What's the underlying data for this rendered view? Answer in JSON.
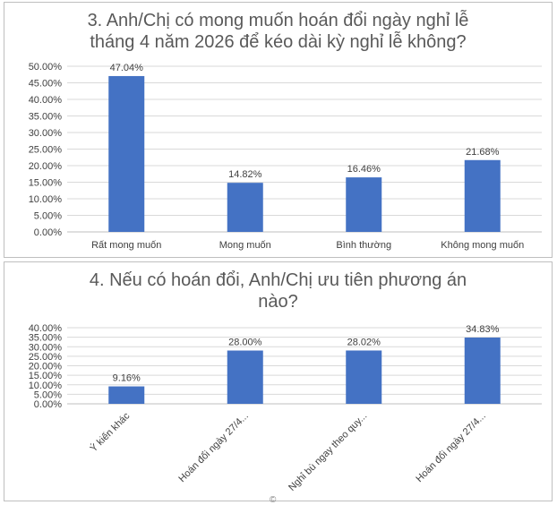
{
  "chart_data": [
    {
      "type": "bar",
      "title_lines": [
        "3. Anh/Chị có mong muốn hoán đổi ngày nghỉ lễ",
        "tháng 4 năm 2026 để kéo dài kỳ nghỉ lễ không?"
      ],
      "categories": [
        "Rất mong muốn",
        "Mong muốn",
        "Bình thường",
        "Không mong muốn"
      ],
      "values": [
        47.04,
        14.82,
        16.46,
        21.68
      ],
      "value_labels": [
        "47.04%",
        "14.82%",
        "16.46%",
        "21.68%"
      ],
      "ylim": [
        0,
        50
      ],
      "yticks": [
        "0.00%",
        "5.00%",
        "10.00%",
        "15.00%",
        "20.00%",
        "25.00%",
        "30.00%",
        "35.00%",
        "40.00%",
        "45.00%",
        "50.00%"
      ],
      "grid": true,
      "bar_color": "#4472c4"
    },
    {
      "type": "bar",
      "title_lines": [
        "4. Nếu có hoán đổi, Anh/Chị ưu tiên phương án",
        "nào?"
      ],
      "categories": [
        "Ý kiến khác",
        "Hoán đổi ngày 27/4...",
        "Nghỉ bù ngay theo quy...",
        "Hoán đổi ngày 27/4..."
      ],
      "values": [
        9.16,
        28.0,
        28.02,
        34.83
      ],
      "value_labels": [
        "9.16%",
        "28.00%",
        "28.02%",
        "34.83%"
      ],
      "ylim": [
        0,
        40
      ],
      "yticks": [
        "0.00%",
        "5.00%",
        "10.00%",
        "15.00%",
        "20.00%",
        "25.00%",
        "30.00%",
        "35.00%",
        "40.00%"
      ],
      "grid": true,
      "bar_color": "#4472c4"
    }
  ],
  "footer_mark": "©"
}
